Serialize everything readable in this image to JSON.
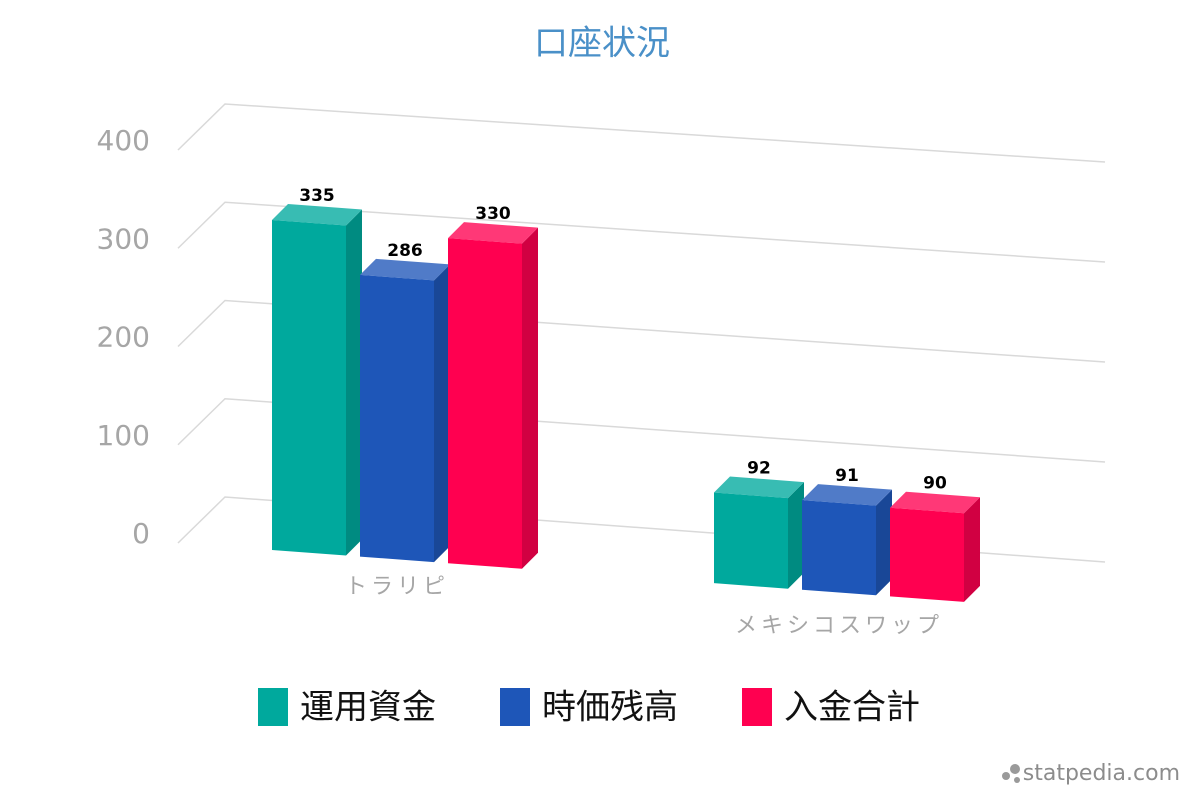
{
  "chart_data": {
    "type": "bar3d",
    "title": "口座状況",
    "categories": [
      "トラリピ",
      "メキシコスワップ"
    ],
    "series": [
      {
        "name": "運用資金",
        "color": "#00a99d",
        "values": [
          335,
          92
        ]
      },
      {
        "name": "時価残高",
        "color": "#1e56b8",
        "values": [
          286,
          91
        ]
      },
      {
        "name": "入金合計",
        "color": "#ff0050",
        "values": [
          330,
          90
        ]
      }
    ],
    "ylim": [
      0,
      400
    ],
    "yticks": [
      0,
      100,
      200,
      300,
      400
    ],
    "grid": true,
    "legend": "bottom",
    "watermark": "statpedia.com"
  }
}
